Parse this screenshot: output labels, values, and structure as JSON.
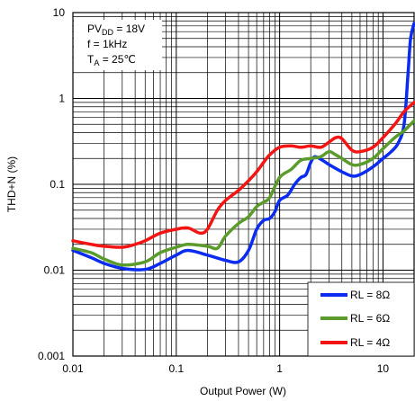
{
  "chart_data": {
    "type": "line",
    "xlabel": "Output Power (W)",
    "ylabel": "THD+N (%)",
    "x_scale": "log",
    "y_scale": "log",
    "xlim": [
      0.01,
      20
    ],
    "ylim": [
      0.001,
      10
    ],
    "x_ticks": [
      "0.01",
      "0.1",
      "1",
      "10"
    ],
    "y_ticks": [
      "10",
      "1",
      "0.1",
      "0.01",
      "0.001"
    ],
    "grid": true,
    "legend_position": "bottom-right",
    "conditions": {
      "line1_main": "PV",
      "line1_sub": "DD",
      "line1_rest": " = 18V",
      "line2": "f = 1kHz",
      "line3_main": "T",
      "line3_sub": "A",
      "line3_rest": " = 25℃"
    },
    "series": [
      {
        "name": "RL = 8Ω",
        "color": "#0b2cf0",
        "points": [
          [
            0.01,
            0.017
          ],
          [
            0.015,
            0.014
          ],
          [
            0.02,
            0.012
          ],
          [
            0.03,
            0.0105
          ],
          [
            0.05,
            0.0102
          ],
          [
            0.07,
            0.012
          ],
          [
            0.1,
            0.015
          ],
          [
            0.13,
            0.017
          ],
          [
            0.2,
            0.015
          ],
          [
            0.3,
            0.013
          ],
          [
            0.4,
            0.0125
          ],
          [
            0.5,
            0.017
          ],
          [
            0.6,
            0.03
          ],
          [
            0.7,
            0.038
          ],
          [
            0.8,
            0.04
          ],
          [
            0.9,
            0.048
          ],
          [
            1.0,
            0.065
          ],
          [
            1.2,
            0.075
          ],
          [
            1.4,
            0.1
          ],
          [
            1.6,
            0.12
          ],
          [
            1.8,
            0.13
          ],
          [
            2.0,
            0.18
          ],
          [
            2.2,
            0.21
          ],
          [
            2.6,
            0.19
          ],
          [
            3.0,
            0.17
          ],
          [
            4.0,
            0.14
          ],
          [
            5.0,
            0.125
          ],
          [
            6.0,
            0.13
          ],
          [
            8.0,
            0.16
          ],
          [
            10,
            0.2
          ],
          [
            12,
            0.24
          ],
          [
            14,
            0.3
          ],
          [
            16,
            0.5
          ],
          [
            17.5,
            2.0
          ],
          [
            18.5,
            5.0
          ],
          [
            20,
            7.5
          ]
        ]
      },
      {
        "name": "RL = 6Ω",
        "color": "#5b9b2c",
        "points": [
          [
            0.01,
            0.018
          ],
          [
            0.015,
            0.016
          ],
          [
            0.02,
            0.0135
          ],
          [
            0.03,
            0.0115
          ],
          [
            0.05,
            0.0125
          ],
          [
            0.07,
            0.016
          ],
          [
            0.1,
            0.0185
          ],
          [
            0.13,
            0.02
          ],
          [
            0.2,
            0.019
          ],
          [
            0.25,
            0.018
          ],
          [
            0.3,
            0.025
          ],
          [
            0.4,
            0.035
          ],
          [
            0.5,
            0.042
          ],
          [
            0.6,
            0.055
          ],
          [
            0.7,
            0.062
          ],
          [
            0.8,
            0.07
          ],
          [
            1.0,
            0.12
          ],
          [
            1.3,
            0.15
          ],
          [
            1.6,
            0.19
          ],
          [
            2.0,
            0.2
          ],
          [
            2.5,
            0.21
          ],
          [
            3.0,
            0.24
          ],
          [
            3.5,
            0.22
          ],
          [
            4.0,
            0.2
          ],
          [
            5.0,
            0.17
          ],
          [
            6.0,
            0.17
          ],
          [
            8.0,
            0.2
          ],
          [
            10,
            0.26
          ],
          [
            13,
            0.35
          ],
          [
            16,
            0.42
          ],
          [
            20,
            0.55
          ]
        ]
      },
      {
        "name": "RL = 4Ω",
        "color": "#f31414",
        "points": [
          [
            0.01,
            0.022
          ],
          [
            0.015,
            0.02
          ],
          [
            0.02,
            0.019
          ],
          [
            0.03,
            0.0185
          ],
          [
            0.04,
            0.02
          ],
          [
            0.05,
            0.022
          ],
          [
            0.07,
            0.027
          ],
          [
            0.1,
            0.03
          ],
          [
            0.13,
            0.031
          ],
          [
            0.17,
            0.027
          ],
          [
            0.2,
            0.03
          ],
          [
            0.25,
            0.05
          ],
          [
            0.3,
            0.065
          ],
          [
            0.4,
            0.085
          ],
          [
            0.5,
            0.11
          ],
          [
            0.6,
            0.14
          ],
          [
            0.7,
            0.18
          ],
          [
            0.8,
            0.22
          ],
          [
            1.0,
            0.27
          ],
          [
            1.3,
            0.28
          ],
          [
            1.6,
            0.27
          ],
          [
            2.0,
            0.28
          ],
          [
            2.5,
            0.27
          ],
          [
            3.0,
            0.31
          ],
          [
            3.5,
            0.35
          ],
          [
            4.0,
            0.34
          ],
          [
            5.0,
            0.25
          ],
          [
            6.0,
            0.24
          ],
          [
            8.0,
            0.27
          ],
          [
            10,
            0.35
          ],
          [
            13,
            0.5
          ],
          [
            16,
            0.7
          ],
          [
            20,
            0.9
          ]
        ]
      }
    ]
  }
}
